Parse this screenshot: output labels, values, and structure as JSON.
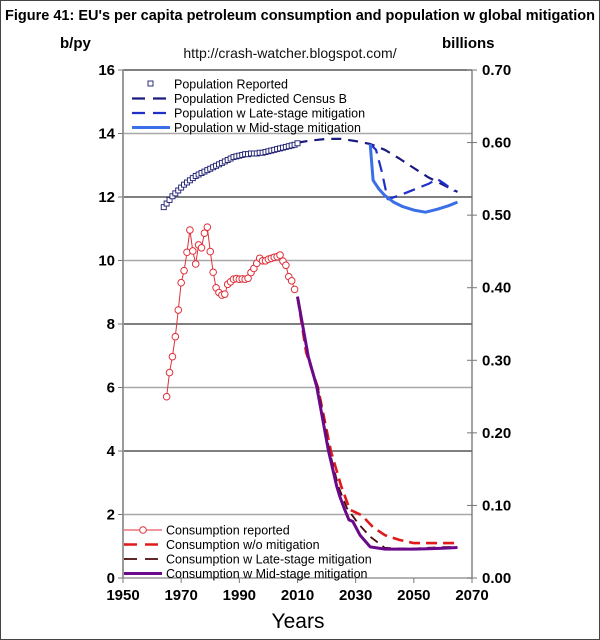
{
  "chart_data": {
    "type": "line",
    "title": "Figure 41: EU's per capita petroleum consumption and population w global mitigation",
    "subtitle": "http://crash-watcher.blogspot.com/",
    "xlabel": "Years",
    "ylabel": "b/py",
    "y2label": "billions",
    "xlim": [
      1950,
      2070
    ],
    "ylim": [
      0,
      16
    ],
    "y2lim": [
      0,
      0.7
    ],
    "grid": true,
    "x_ticks": [
      "1950",
      "1970",
      "1990",
      "2010",
      "2030",
      "2050",
      "2070"
    ],
    "x_tick_values": [
      1950,
      1970,
      1990,
      2010,
      2030,
      2050,
      2070
    ],
    "y_ticks": [
      "0",
      "2",
      "4",
      "6",
      "8",
      "10",
      "12",
      "14",
      "16"
    ],
    "y_tick_values": [
      0,
      2,
      4,
      6,
      8,
      10,
      12,
      14,
      16
    ],
    "y2_ticks": [
      "0.00",
      "0.10",
      "0.20",
      "0.30",
      "0.40",
      "0.50",
      "0.60",
      "0.70"
    ],
    "y2_tick_values": [
      0,
      0.1,
      0.2,
      0.3,
      0.4,
      0.5,
      0.6,
      0.7
    ],
    "legend_top": {
      "placement": "top-left",
      "entries": [
        "Population Reported",
        "Population Predicted Census B",
        "Population w Late-stage mitigation",
        "Population w Mid-stage mitigation"
      ]
    },
    "legend_bottom": {
      "placement": "bottom-left",
      "entries": [
        "Consumption reported",
        "Consumption w/o mitigation",
        "Consumption w Late-stage mitigation",
        "Consumption w Mid-stage mitigation"
      ]
    },
    "series": [
      {
        "name": "Population Reported",
        "axis": "right",
        "style": "square-markers",
        "color": "#1a1a6e",
        "x": [
          1964,
          1965,
          1966,
          1967,
          1968,
          1969,
          1970,
          1971,
          1972,
          1973,
          1974,
          1975,
          1976,
          1977,
          1978,
          1979,
          1980,
          1981,
          1982,
          1983,
          1984,
          1985,
          1986,
          1987,
          1988,
          1989,
          1990,
          1991,
          1992,
          1993,
          1994,
          1995,
          1996,
          1997,
          1998,
          1999,
          2000,
          2001,
          2002,
          2003,
          2004,
          2005,
          2006,
          2007,
          2008,
          2009,
          2010
        ],
        "y": [
          0.511,
          0.516,
          0.521,
          0.526,
          0.53,
          0.534,
          0.538,
          0.542,
          0.545,
          0.548,
          0.551,
          0.554,
          0.556,
          0.558,
          0.56,
          0.562,
          0.564,
          0.566,
          0.568,
          0.57,
          0.572,
          0.574,
          0.576,
          0.578,
          0.58,
          0.581,
          0.582,
          0.583,
          0.584,
          0.584,
          0.585,
          0.585,
          0.585,
          0.586,
          0.586,
          0.587,
          0.588,
          0.589,
          0.59,
          0.591,
          0.592,
          0.593,
          0.594,
          0.595,
          0.596,
          0.597,
          0.599
        ]
      },
      {
        "name": "Population Predicted Census B",
        "axis": "right",
        "style": "dash",
        "color": "#1a1a80",
        "x": [
          2010,
          2015,
          2020,
          2025,
          2030,
          2035,
          2040,
          2045,
          2050,
          2055,
          2060,
          2065
        ],
        "y": [
          0.6,
          0.603,
          0.605,
          0.605,
          0.602,
          0.598,
          0.59,
          0.578,
          0.565,
          0.552,
          0.542,
          0.532
        ]
      },
      {
        "name": "Population w Late-stage mitigation",
        "axis": "right",
        "style": "dash",
        "color": "#1f2fc8",
        "x": [
          2035,
          2037,
          2039,
          2041,
          2045,
          2050,
          2055,
          2058,
          2061,
          2064
        ],
        "y": [
          0.598,
          0.59,
          0.56,
          0.522,
          0.527,
          0.535,
          0.543,
          0.55,
          0.542,
          0.533
        ]
      },
      {
        "name": "Population w Mid-stage mitigation",
        "axis": "right",
        "style": "solid",
        "color": "#3a6fe8",
        "x": [
          2035,
          2036,
          2038,
          2040,
          2043,
          2046,
          2050,
          2054,
          2058,
          2062,
          2065
        ],
        "y": [
          0.598,
          0.548,
          0.536,
          0.527,
          0.518,
          0.512,
          0.507,
          0.504,
          0.508,
          0.513,
          0.518
        ]
      },
      {
        "name": "Consumption reported",
        "axis": "left",
        "style": "circle-markers",
        "color": "#e0303a",
        "x": [
          1965,
          1966,
          1967,
          1968,
          1969,
          1970,
          1971,
          1972,
          1973,
          1974,
          1975,
          1976,
          1977,
          1978,
          1979,
          1980,
          1981,
          1982,
          1983,
          1984,
          1985,
          1986,
          1987,
          1988,
          1989,
          1990,
          1991,
          1992,
          1993,
          1994,
          1995,
          1996,
          1997,
          1998,
          1999,
          2000,
          2001,
          2002,
          2003,
          2004,
          2005,
          2006,
          2007,
          2008,
          2009
        ],
        "y": [
          5.71,
          6.47,
          6.97,
          7.6,
          8.44,
          9.3,
          9.68,
          10.26,
          10.96,
          10.3,
          9.89,
          10.49,
          10.4,
          10.86,
          11.05,
          10.28,
          9.63,
          9.14,
          8.99,
          8.91,
          8.94,
          9.25,
          9.33,
          9.41,
          9.43,
          9.41,
          9.42,
          9.41,
          9.44,
          9.62,
          9.75,
          9.91,
          10.07,
          9.99,
          9.99,
          10.04,
          10.07,
          10.1,
          10.12,
          10.17,
          9.98,
          9.85,
          9.49,
          9.36,
          9.09
        ]
      },
      {
        "name": "Consumption w/o mitigation",
        "axis": "left",
        "style": "dash",
        "color": "#e01a1a",
        "x": [
          2010,
          2013,
          2017,
          2021.5,
          2025,
          2028,
          2032,
          2036,
          2040,
          2045,
          2050,
          2055,
          2060,
          2065
        ],
        "y": [
          8.86,
          7.1,
          6.0,
          4.0,
          2.9,
          2.15,
          1.98,
          1.6,
          1.35,
          1.2,
          1.1,
          1.1,
          1.1,
          1.1
        ]
      },
      {
        "name": "Consumption w Late-stage mitigation",
        "axis": "left",
        "style": "dash",
        "color": "#4a0a0a",
        "x": [
          2010,
          2013.5,
          2017,
          2021,
          2024,
          2027,
          2031,
          2035,
          2040,
          2045,
          2050,
          2055,
          2060,
          2065
        ],
        "y": [
          8.86,
          7.0,
          6.0,
          4.0,
          2.9,
          2.2,
          1.7,
          1.3,
          0.95,
          0.93,
          0.93,
          0.95,
          0.97,
          0.98
        ]
      },
      {
        "name": "Consumption w Mid-stage mitigation",
        "axis": "left",
        "style": "solid",
        "color": "#6a0a8a",
        "x": [
          2010,
          2013.7,
          2016.6,
          2020.6,
          2023.5,
          2024.6,
          2026.3,
          2027.7,
          2029,
          2031.5,
          2035,
          2040,
          2045,
          2050,
          2055,
          2060,
          2065
        ],
        "y": [
          8.86,
          6.97,
          6.03,
          4.03,
          2.88,
          2.55,
          2.14,
          1.83,
          1.78,
          1.35,
          0.98,
          0.91,
          0.91,
          0.91,
          0.92,
          0.94,
          0.96
        ]
      }
    ]
  }
}
